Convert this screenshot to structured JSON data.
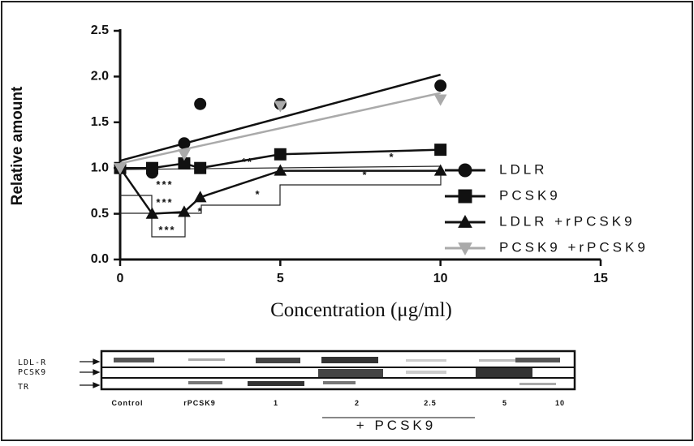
{
  "chart_data": {
    "type": "scatter",
    "x_label": "Concentration (μg/ml)",
    "y_label": "Relative amount",
    "x": [
      0,
      1,
      2,
      2.5,
      5,
      10
    ],
    "xlim": [
      0,
      15
    ],
    "xticks": [
      0,
      5,
      10,
      15
    ],
    "ylim": [
      0,
      2.5
    ],
    "yticks": [
      {
        "value": 0,
        "label": "0.0"
      },
      0.5,
      {
        "value": 1,
        "label": "1.0"
      },
      1.5,
      {
        "value": 2,
        "label": "2.0"
      },
      2.5
    ],
    "series": [
      {
        "name": "LDLR",
        "color": "#111111",
        "marker": "circle",
        "line": false,
        "values": [
          1.0,
          0.95,
          1.27,
          1.7,
          1.7,
          1.9
        ],
        "fit": {
          "x": [
            0,
            10
          ],
          "y": [
            1.08,
            2.02
          ]
        }
      },
      {
        "name": "PCSK9",
        "color": "#111111",
        "marker": "square",
        "line": true,
        "values": [
          1.0,
          1.0,
          1.05,
          1.0,
          1.15,
          1.2
        ]
      },
      {
        "name": "LDLR +rPCSK9",
        "color": "#111111",
        "marker": "triangle",
        "line": true,
        "values": [
          1.0,
          0.5,
          0.52,
          0.68,
          0.97,
          0.97
        ]
      },
      {
        "name": "PCSK9 +rPCSK9",
        "color": "#aaaaaa",
        "marker": "triangle-down",
        "line": false,
        "values": [
          1.0,
          null,
          1.15,
          null,
          1.68,
          1.75
        ],
        "fit": {
          "x": [
            0,
            10
          ],
          "y": [
            1.05,
            1.82
          ]
        }
      }
    ],
    "annotations": [
      "***",
      "***",
      "***",
      "*",
      "**",
      "*",
      "*",
      "*"
    ]
  },
  "blot": {
    "rows": [
      "LDL-R",
      "PCSK9",
      "TR"
    ],
    "lanes": [
      "Control",
      "rPCSK9",
      "1",
      "2",
      "2.5",
      "5",
      "10"
    ],
    "group_label": "+ PCSK9"
  }
}
